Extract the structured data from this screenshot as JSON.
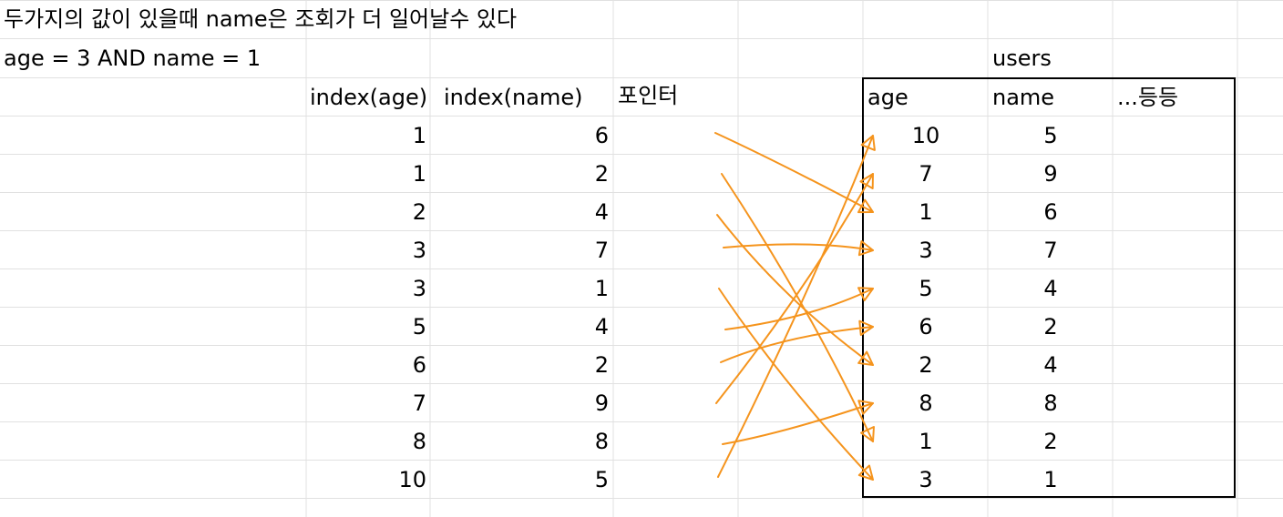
{
  "title": "두가지의 값이 있을때 name은 조회가 더 일어날수 있다",
  "query": "age = 3 AND name = 1",
  "index_table": {
    "headers": [
      "index(age)",
      "index(name)",
      "포인터"
    ],
    "rows": [
      {
        "age": "1",
        "name": "6"
      },
      {
        "age": "1",
        "name": "2"
      },
      {
        "age": "2",
        "name": "4"
      },
      {
        "age": "3",
        "name": "7"
      },
      {
        "age": "3",
        "name": "1"
      },
      {
        "age": "5",
        "name": "4"
      },
      {
        "age": "6",
        "name": "2"
      },
      {
        "age": "7",
        "name": "9"
      },
      {
        "age": "8",
        "name": "8"
      },
      {
        "age": "10",
        "name": "5"
      }
    ]
  },
  "users_table": {
    "title": "users",
    "headers": [
      "age",
      "name",
      "...등등"
    ],
    "rows": [
      {
        "age": "10",
        "name": "5"
      },
      {
        "age": "7",
        "name": "9"
      },
      {
        "age": "1",
        "name": "6"
      },
      {
        "age": "3",
        "name": "7"
      },
      {
        "age": "5",
        "name": "4"
      },
      {
        "age": "6",
        "name": "2"
      },
      {
        "age": "2",
        "name": "4"
      },
      {
        "age": "8",
        "name": "8"
      },
      {
        "age": "1",
        "name": "2"
      },
      {
        "age": "3",
        "name": "1"
      }
    ]
  },
  "pointer_map": [
    2,
    8,
    6,
    3,
    9,
    4,
    5,
    1,
    7,
    0
  ],
  "colors": {
    "grid": "#e1e1e1",
    "arrow": "#f5941d",
    "border": "#000000"
  }
}
